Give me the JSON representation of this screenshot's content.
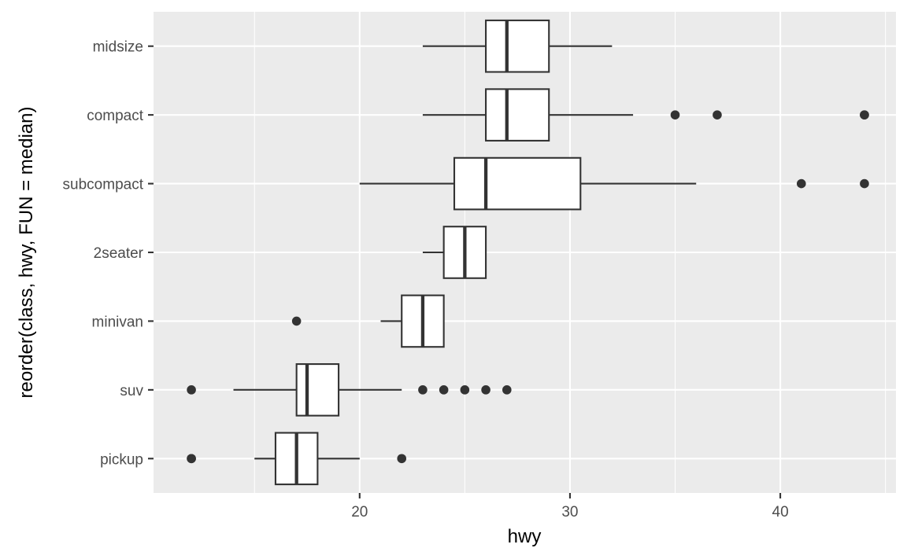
{
  "chart_data": {
    "type": "boxplot",
    "orientation": "horizontal",
    "xlabel": "hwy",
    "ylabel": "reorder(class, hwy, FUN = median)",
    "xlim": [
      10.2,
      45.5
    ],
    "x_ticks": [
      20,
      30,
      40
    ],
    "x_minor_ticks": [
      15,
      25,
      35,
      45
    ],
    "grid": true,
    "categories": [
      "midsize",
      "compact",
      "subcompact",
      "2seater",
      "minivan",
      "suv",
      "pickup"
    ],
    "boxes": [
      {
        "category": "midsize",
        "lower_whisker": 23,
        "q1": 26,
        "median": 27,
        "q3": 29,
        "upper_whisker": 32,
        "outliers": []
      },
      {
        "category": "compact",
        "lower_whisker": 23,
        "q1": 26,
        "median": 27,
        "q3": 29,
        "upper_whisker": 33,
        "outliers": [
          35,
          37,
          44,
          44
        ]
      },
      {
        "category": "subcompact",
        "lower_whisker": 20,
        "q1": 24.5,
        "median": 26,
        "q3": 30.5,
        "upper_whisker": 36,
        "outliers": [
          41,
          44
        ]
      },
      {
        "category": "2seater",
        "lower_whisker": 23,
        "q1": 24,
        "median": 25,
        "q3": 26,
        "upper_whisker": 26,
        "outliers": []
      },
      {
        "category": "minivan",
        "lower_whisker": 21,
        "q1": 22,
        "median": 23,
        "q3": 24,
        "upper_whisker": 24,
        "outliers": [
          17
        ]
      },
      {
        "category": "suv",
        "lower_whisker": 14,
        "q1": 17,
        "median": 17.5,
        "q3": 19,
        "upper_whisker": 22,
        "outliers": [
          12,
          23,
          24,
          25,
          26,
          27
        ]
      },
      {
        "category": "pickup",
        "lower_whisker": 15,
        "q1": 16,
        "median": 17,
        "q3": 18,
        "upper_whisker": 20,
        "outliers": [
          12,
          12,
          22
        ]
      }
    ],
    "colors": {
      "panel": "#ebebeb",
      "grid": "#ffffff",
      "box_line": "#333333",
      "box_fill": "#ffffff"
    }
  }
}
